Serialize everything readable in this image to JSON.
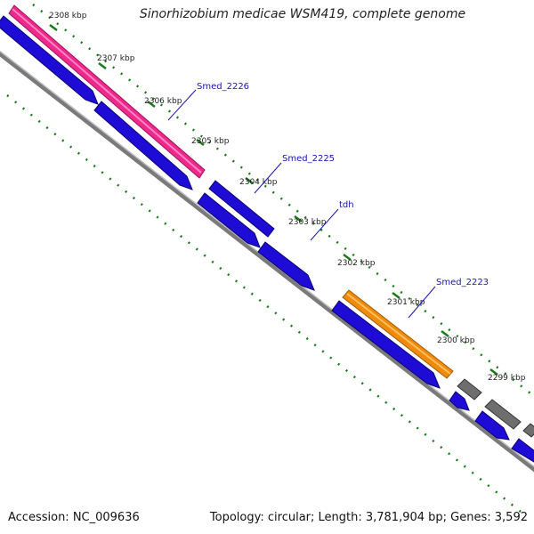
{
  "title": "Sinorhizobium medicae WSM419, complete genome",
  "accession": "Accession: NC_009636",
  "summary": "Topology: circular; Length: 3,781,904 bp; Genes: 3,592",
  "colors": {
    "background": "#ffffff",
    "backbone": "#808080",
    "tick": "#1a7a1a",
    "gene_forward": "#1e0bd6",
    "gene_pink": "#f0288c",
    "gene_orange": "#f08a0a",
    "gene_gray": "#6e6e6e",
    "label": "#1a13b8"
  },
  "scale_labels": [
    "2308 kbp",
    "2307 kbp",
    "2306 kbp",
    "2305 kbp",
    "2304 kbp",
    "2303 kbp",
    "2302 kbp",
    "2301 kbp",
    "2300 kbp",
    "2299 kbp"
  ],
  "gene_labels": [
    "Smed_2226",
    "Smed_2225",
    "tdh",
    "Smed_2223"
  ]
}
